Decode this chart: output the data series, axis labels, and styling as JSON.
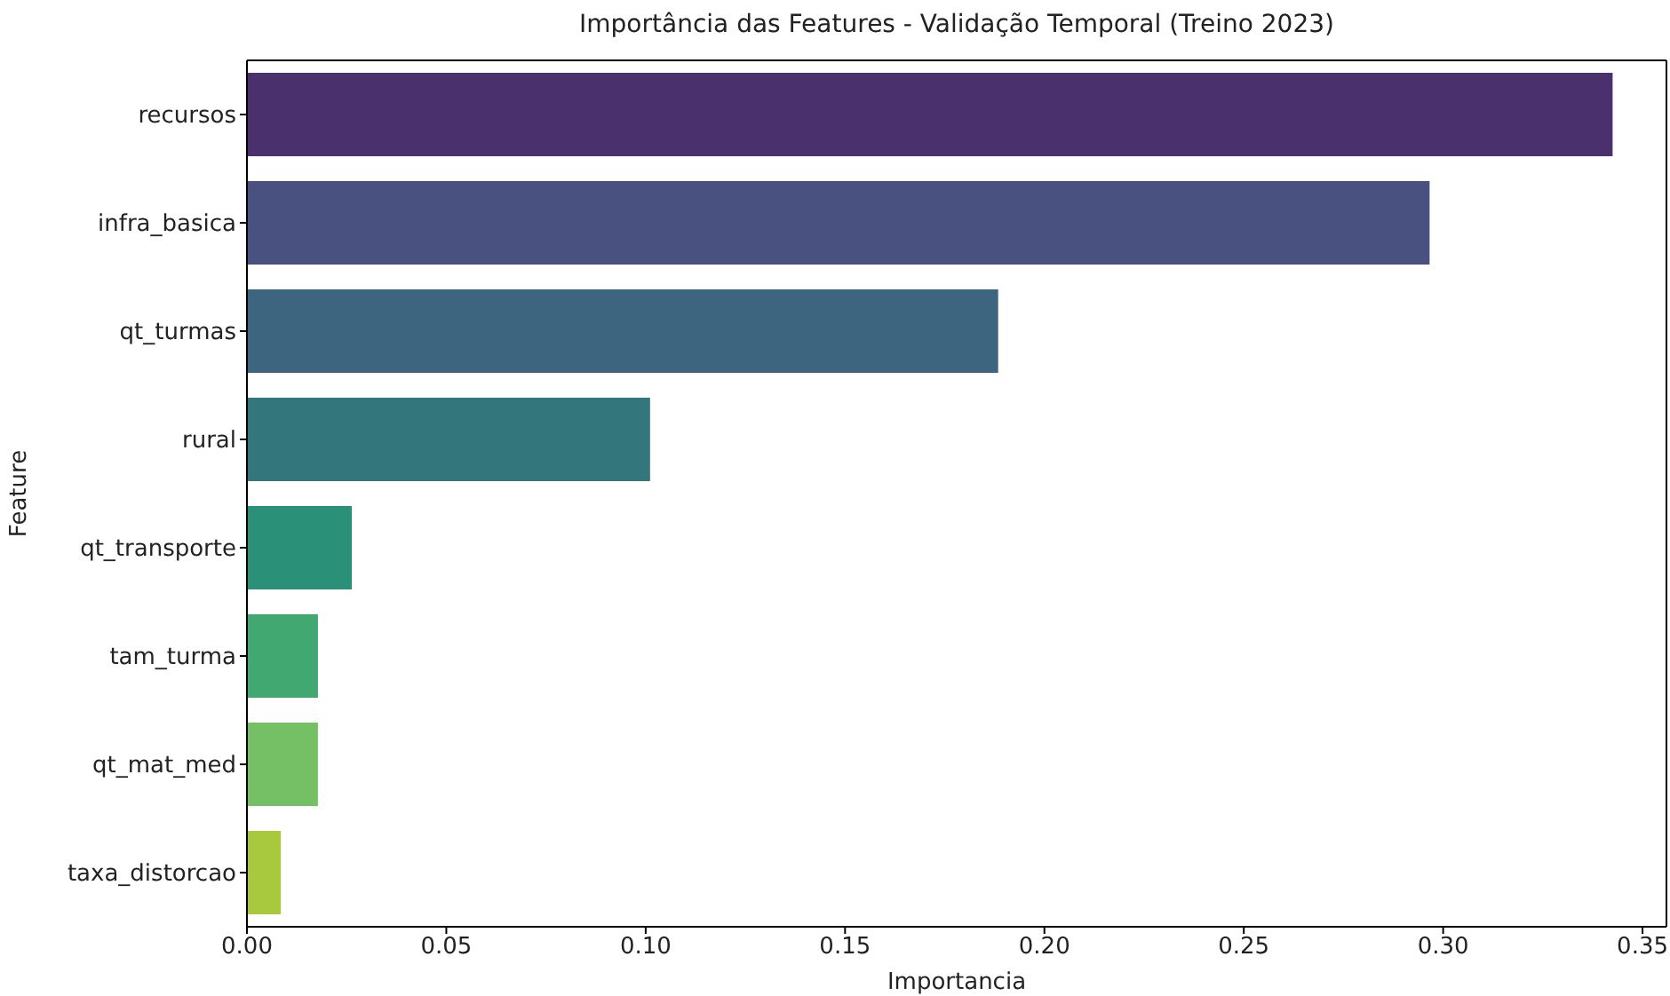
{
  "chart_data": {
    "type": "bar",
    "orientation": "horizontal",
    "title": "Importância das Features - Validação Temporal (Treino 2023)",
    "xlabel": "Importancia",
    "ylabel": "Feature",
    "categories": [
      "recursos",
      "infra_basica",
      "qt_turmas",
      "rural",
      "qt_transporte",
      "tam_turma",
      "qt_mat_med",
      "taxa_distorcao"
    ],
    "values": [
      0.3425,
      0.2966,
      0.1884,
      0.1011,
      0.0263,
      0.0178,
      0.0178,
      0.0085
    ],
    "colors": [
      "#4a306d",
      "#48517f",
      "#3e6580",
      "#33777d",
      "#2a9178",
      "#40a870",
      "#75c065",
      "#a8c83e"
    ],
    "xlim": [
      0,
      0.356
    ],
    "xticks": [
      {
        "value": 0,
        "label": "0.00"
      },
      {
        "value": 0.05,
        "label": "0.05"
      },
      {
        "value": 0.1,
        "label": "0.10"
      },
      {
        "value": 0.15,
        "label": "0.15"
      },
      {
        "value": 0.2,
        "label": "0.20"
      },
      {
        "value": 0.25,
        "label": "0.25"
      },
      {
        "value": 0.3,
        "label": "0.30"
      },
      {
        "value": 0.35,
        "label": "0.35"
      }
    ],
    "grid": false,
    "legend": false
  }
}
